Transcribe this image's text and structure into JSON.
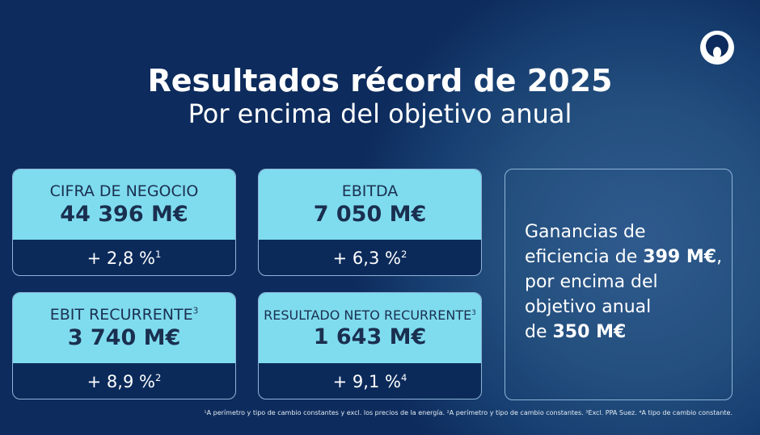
{
  "header": {
    "title": "Resultados récord de 2025",
    "subtitle": "Por encima del objetivo anual"
  },
  "logo": {
    "icon": "company-logo-icon"
  },
  "cards": [
    {
      "label": "CIFRA DE NEGOCIO",
      "label_sup": "",
      "value": "44 396 M€",
      "change": "+ 2,8 %",
      "change_sup": "1"
    },
    {
      "label": "EBITDA",
      "label_sup": "",
      "value": "7 050 M€",
      "change": "+ 6,3 %",
      "change_sup": "2"
    },
    {
      "label": "EBIT RECURRENTE",
      "label_sup": "3",
      "value": "3 740 M€",
      "change": "+ 8,9 %",
      "change_sup": "2"
    },
    {
      "label": "RESULTADO NETO RECURRENTE",
      "label_sup": "3",
      "value": "1 643 M€",
      "change": "+ 9,1 %",
      "change_sup": "4"
    }
  ],
  "efficiency": {
    "line1": "Ganancias de",
    "line2a": "eficiencia de ",
    "line2b": "399 M€",
    "line2c": ",",
    "line3": "por encima del",
    "line4": "objetivo anual",
    "line5a": "de ",
    "line5b": "350 M€"
  },
  "footnote": "¹A perímetro y tipo de cambio constantes y excl. los precios de la energía. ²A perímetro y tipo de cambio constantes. ³Excl. PPA Suez. ⁴A tipo de cambio constante.",
  "colors": {
    "background": "#0d2b5c",
    "card_top": "#7fdcee",
    "card_bottom": "#0b2a5a"
  }
}
